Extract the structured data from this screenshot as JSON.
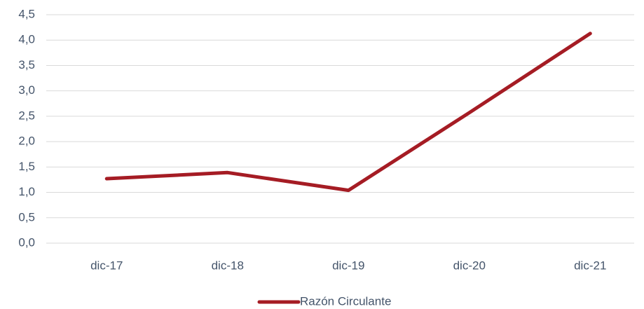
{
  "chart_data": {
    "type": "line",
    "categories": [
      "dic-17",
      "dic-18",
      "dic-19",
      "dic-20",
      "dic-21"
    ],
    "series": [
      {
        "name": "Razón Circulante",
        "color": "#a51c24",
        "values": [
          1.27,
          1.39,
          1.04,
          2.57,
          4.13
        ]
      }
    ],
    "ylim": [
      0,
      4.5
    ],
    "yticks": [
      {
        "value": 0,
        "label": "0,0"
      },
      {
        "value": 0.5,
        "label": "0,5"
      },
      {
        "value": 1,
        "label": "1,0"
      },
      {
        "value": 1.5,
        "label": "1,5"
      },
      {
        "value": 2,
        "label": "2,0"
      },
      {
        "value": 2.5,
        "label": "2,5"
      },
      {
        "value": 3,
        "label": "3,0"
      },
      {
        "value": 3.5,
        "label": "3,5"
      },
      {
        "value": 4,
        "label": "4,0"
      },
      {
        "value": 4.5,
        "label": "4,5"
      }
    ],
    "grid": true,
    "legend": "bottom"
  }
}
